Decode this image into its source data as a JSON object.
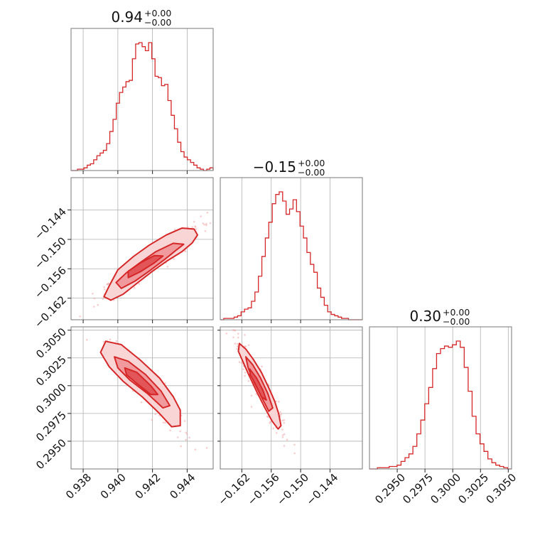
{
  "colors": {
    "accent": "#d62728",
    "fill_light": "#f9d5d6",
    "fill_mid": "#f09a9d",
    "fill_dark": "#e2565a",
    "samples": "#f2a6a8"
  },
  "titles": [
    {
      "main": "0.94",
      "sup": "+0.00",
      "sub": "−0.00"
    },
    {
      "main": "−0.15",
      "sup": "+0.00",
      "sub": "−0.00"
    },
    {
      "main": "0.30",
      "sup": "+0.00",
      "sub": "−0.00"
    }
  ],
  "chart_data": {
    "type": "corner",
    "grid": true,
    "parameters": [
      {
        "range": [
          0.9373,
          0.9455
        ],
        "ticks": [
          0.938,
          0.94,
          0.942,
          0.944
        ],
        "tick_labels": [
          "0.938",
          "0.940",
          "0.942",
          "0.944"
        ],
        "histogram": [
          0,
          0,
          1,
          1,
          2,
          4,
          5,
          8,
          11,
          13,
          15,
          20,
          29,
          38,
          50,
          58,
          62,
          66,
          67,
          83,
          94,
          95,
          92,
          89,
          95,
          83,
          70,
          69,
          63,
          64,
          52,
          41,
          31,
          21,
          14,
          10,
          8,
          6,
          4,
          2,
          1,
          0,
          1,
          2
        ]
      },
      {
        "range": [
          -0.1664,
          -0.1374
        ],
        "ticks": [
          -0.162,
          -0.156,
          -0.15,
          -0.144
        ],
        "tick_labels": [
          "−0.162",
          "−0.156",
          "−0.150",
          "−0.144"
        ],
        "histogram": [
          0,
          1,
          1,
          1,
          2,
          3,
          6,
          8,
          9,
          14,
          21,
          33,
          48,
          62,
          74,
          88,
          95,
          97,
          90,
          80,
          84,
          91,
          82,
          71,
          62,
          51,
          42,
          36,
          24,
          17,
          11,
          6,
          4,
          3,
          2,
          1,
          1,
          0,
          0,
          0,
          0
        ]
      },
      {
        "range": [
          0.2925,
          0.3053
        ],
        "ticks": [
          0.295,
          0.2975,
          0.3,
          0.3025,
          0.305
        ],
        "tick_labels": [
          "0.2950",
          "0.2975",
          "0.3000",
          "0.3025",
          "0.3050"
        ],
        "histogram": [
          0,
          0,
          1,
          1,
          1,
          2,
          2,
          3,
          6,
          9,
          12,
          18,
          28,
          39,
          52,
          65,
          80,
          92,
          96,
          98,
          97,
          99,
          102,
          97,
          81,
          62,
          42,
          28,
          20,
          14,
          8,
          5,
          3,
          2,
          1,
          0
        ]
      }
    ],
    "pairs": [
      {
        "x_param": 0,
        "y_param": 1,
        "contours": [
          [
            [
              0.9392,
              -0.1617
            ],
            [
              0.9396,
              -0.1624
            ],
            [
              0.9403,
              -0.1612
            ],
            [
              0.9412,
              -0.1587
            ],
            [
              0.942,
              -0.1565
            ],
            [
              0.9428,
              -0.1545
            ],
            [
              0.9437,
              -0.1525
            ],
            [
              0.9443,
              -0.1507
            ],
            [
              0.9446,
              -0.1491
            ],
            [
              0.9444,
              -0.1479
            ],
            [
              0.9437,
              -0.1477
            ],
            [
              0.9428,
              -0.1491
            ],
            [
              0.9418,
              -0.1512
            ],
            [
              0.9409,
              -0.1535
            ],
            [
              0.94,
              -0.1562
            ],
            [
              0.9395,
              -0.1595
            ]
          ],
          [
            [
              0.9402,
              -0.16
            ],
            [
              0.941,
              -0.1585
            ],
            [
              0.9418,
              -0.1565
            ],
            [
              0.9427,
              -0.1541
            ],
            [
              0.9434,
              -0.1521
            ],
            [
              0.9438,
              -0.151
            ],
            [
              0.9432,
              -0.1508
            ],
            [
              0.9422,
              -0.1525
            ],
            [
              0.9413,
              -0.1547
            ],
            [
              0.9405,
              -0.1568
            ],
            [
              0.9399,
              -0.1588
            ]
          ],
          [
            [
              0.9406,
              -0.1578
            ],
            [
              0.9413,
              -0.1566
            ],
            [
              0.9421,
              -0.1548
            ],
            [
              0.9426,
              -0.1534
            ],
            [
              0.9421,
              -0.1533
            ],
            [
              0.9413,
              -0.1548
            ],
            [
              0.9406,
              -0.1565
            ]
          ]
        ]
      },
      {
        "x_param": 0,
        "y_param": 2,
        "contours": [
          [
            [
              0.939,
              0.303
            ],
            [
              0.9393,
              0.304
            ],
            [
              0.9402,
              0.3037
            ],
            [
              0.9413,
              0.3023
            ],
            [
              0.9424,
              0.3007
            ],
            [
              0.9432,
              0.299
            ],
            [
              0.9436,
              0.2978
            ],
            [
              0.9436,
              0.2964
            ],
            [
              0.9431,
              0.2963
            ],
            [
              0.9424,
              0.2975
            ],
            [
              0.9414,
              0.299
            ],
            [
              0.9403,
              0.3004
            ],
            [
              0.9395,
              0.3017
            ]
          ],
          [
            [
              0.9398,
              0.3026
            ],
            [
              0.9406,
              0.3022
            ],
            [
              0.9416,
              0.301
            ],
            [
              0.9425,
              0.2995
            ],
            [
              0.943,
              0.2982
            ],
            [
              0.9426,
              0.298
            ],
            [
              0.9417,
              0.2993
            ],
            [
              0.9407,
              0.3005
            ],
            [
              0.94,
              0.3016
            ]
          ],
          [
            [
              0.9404,
              0.3016
            ],
            [
              0.9411,
              0.3012
            ],
            [
              0.9419,
              0.3
            ],
            [
              0.9423,
              0.2992
            ],
            [
              0.9419,
              0.2992
            ],
            [
              0.9411,
              0.3002
            ],
            [
              0.9405,
              0.301
            ]
          ]
        ]
      },
      {
        "x_param": 1,
        "y_param": 2,
        "contours": [
          [
            [
              -0.1627,
              0.3031
            ],
            [
              -0.1625,
              0.3038
            ],
            [
              -0.1612,
              0.3033
            ],
            [
              -0.1597,
              0.3024
            ],
            [
              -0.158,
              0.3012
            ],
            [
              -0.1565,
              0.2998
            ],
            [
              -0.1553,
              0.2986
            ],
            [
              -0.1545,
              0.2975
            ],
            [
              -0.154,
              0.2964
            ],
            [
              -0.1546,
              0.2961
            ],
            [
              -0.1558,
              0.2968
            ],
            [
              -0.1573,
              0.298
            ],
            [
              -0.159,
              0.2995
            ],
            [
              -0.1606,
              0.301
            ],
            [
              -0.1619,
              0.3023
            ]
          ],
          [
            [
              -0.1612,
              0.3026
            ],
            [
              -0.1598,
              0.3019
            ],
            [
              -0.1582,
              0.3007
            ],
            [
              -0.1567,
              0.2993
            ],
            [
              -0.1557,
              0.298
            ],
            [
              -0.1565,
              0.2977
            ],
            [
              -0.1579,
              0.2989
            ],
            [
              -0.1595,
              0.3003
            ],
            [
              -0.1607,
              0.3016
            ]
          ],
          [
            [
              -0.1604,
              0.3015
            ],
            [
              -0.159,
              0.3007
            ],
            [
              -0.1577,
              0.2996
            ],
            [
              -0.157,
              0.2987
            ],
            [
              -0.158,
              0.299
            ],
            [
              -0.1593,
              0.3002
            ],
            [
              -0.1603,
              0.301
            ]
          ]
        ]
      }
    ],
    "samples_per_pair": 260
  }
}
